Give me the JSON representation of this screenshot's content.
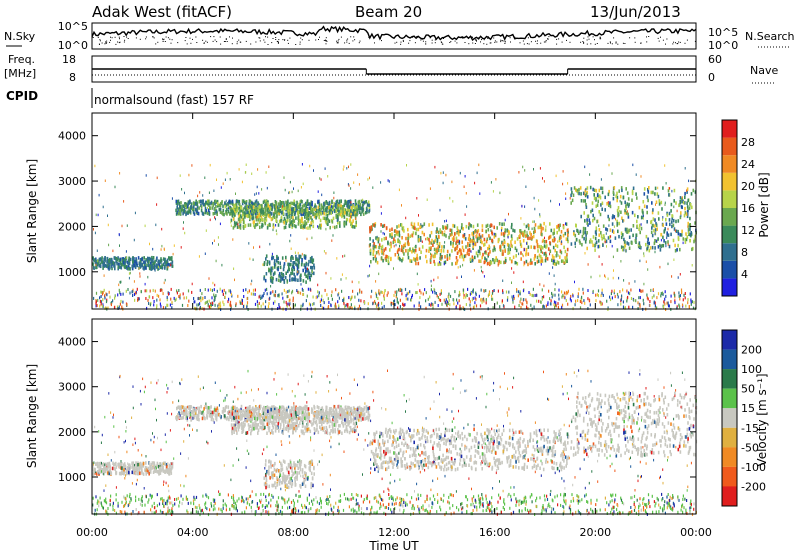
{
  "header": {
    "station": "Adak West (fitACF)",
    "beam": "Beam 20",
    "date": "13/Jun/2013"
  },
  "strip_labels": {
    "nsky": "N.Sky",
    "nsearch": "N.Search",
    "freq": "Freq.",
    "freq_unit": "[MHz]",
    "nave": "Nave",
    "cpid": "CPID",
    "cpid_text": "normalsound (fast) 157 RF"
  },
  "noise_ticks": {
    "left": [
      "10^5",
      "10^0"
    ],
    "right": [
      "10^5",
      "10^0"
    ]
  },
  "freq_ticks": {
    "left": [
      "18",
      "8"
    ],
    "right": [
      "60",
      "0"
    ]
  },
  "colors": {
    "power": [
      "#2020e0",
      "#1b4fa8",
      "#2f6f8f",
      "#3a8a5a",
      "#6aa84f",
      "#b7d44a",
      "#f2c230",
      "#f08a24",
      "#e85a1c",
      "#e01e1e"
    ],
    "velocity": [
      "#1c2aa8",
      "#1b5a9c",
      "#2a7a4a",
      "#5bc24a",
      "#c8c8c0",
      "#e0b040",
      "#f08a24",
      "#f05a1c",
      "#e01e1e"
    ]
  },
  "chart_data": [
    {
      "type": "heatmap",
      "title": "Power",
      "xlabel": "Time UT",
      "ylabel": "Slant Range [km]",
      "xlim": [
        "00:00",
        "24:00"
      ],
      "ylim": [
        180,
        4500
      ],
      "x_ticks": [
        "00:00",
        "04:00",
        "08:00",
        "12:00",
        "16:00",
        "20:00",
        "00:00"
      ],
      "y_ticks": [
        "1000",
        "2000",
        "3000",
        "4000"
      ],
      "colorbar_label": "Power [dB]",
      "colorbar_ticks": [
        "4",
        "8",
        "12",
        "16",
        "20",
        "24",
        "28"
      ],
      "colorbar_range": [
        0,
        30
      ],
      "bands": [
        {
          "t": [
            0,
            3.2
          ],
          "range_km": [
            1100,
            1350
          ],
          "power_db": [
            4,
            10
          ]
        },
        {
          "t": [
            3.3,
            11
          ],
          "range_km": [
            2300,
            2600
          ],
          "power_db": [
            4,
            16
          ]
        },
        {
          "t": [
            5.5,
            10.5
          ],
          "range_km": [
            2000,
            2500
          ],
          "power_db": [
            8,
            20
          ]
        },
        {
          "t": [
            6.8,
            8.8
          ],
          "range_km": [
            800,
            1400
          ],
          "power_db": [
            4,
            12
          ]
        },
        {
          "t": [
            11,
            18.9
          ],
          "range_km": [
            1200,
            2100
          ],
          "power_db": [
            8,
            28
          ]
        },
        {
          "t": [
            19,
            24
          ],
          "range_km": [
            1500,
            2900
          ],
          "power_db": [
            4,
            20
          ]
        }
      ]
    },
    {
      "type": "heatmap",
      "title": "Velocity",
      "xlabel": "Time UT",
      "ylabel": "Slant Range [km]",
      "xlim": [
        "00:00",
        "24:00"
      ],
      "ylim": [
        180,
        4500
      ],
      "x_ticks": [
        "00:00",
        "04:00",
        "08:00",
        "12:00",
        "16:00",
        "20:00",
        "00:00"
      ],
      "y_ticks": [
        "1000",
        "2000",
        "3000",
        "4000"
      ],
      "colorbar_label": "Velocity [m s⁻¹]",
      "colorbar_ticks": [
        "200",
        "100",
        "50",
        "15",
        "-15",
        "-50",
        "-100",
        "-200"
      ],
      "colorbar_range": [
        -250,
        250
      ]
    }
  ],
  "freq_data": {
    "segments": [
      {
        "t": [
          0,
          10.9
        ],
        "freq_mhz": 13
      },
      {
        "t": [
          10.9,
          18.9
        ],
        "freq_mhz": 10.5
      },
      {
        "t": [
          18.9,
          24
        ],
        "freq_mhz": 13
      }
    ]
  }
}
